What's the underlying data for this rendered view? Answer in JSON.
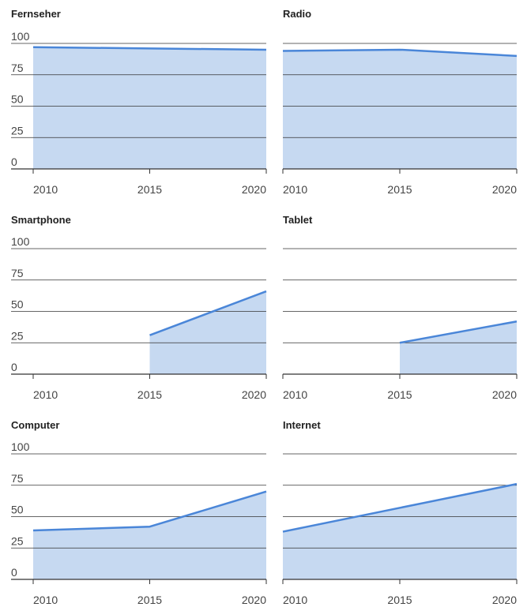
{
  "colors": {
    "line": "#4a86d8",
    "area": "#c6d9f1",
    "grid": "#333333",
    "text": "#444444"
  },
  "chart_data": [
    {
      "type": "area",
      "title": "Fernseher",
      "x": [
        2010,
        2015,
        2020
      ],
      "values": [
        97,
        96,
        95
      ],
      "ylim": [
        0,
        100
      ],
      "yticks": [
        "100",
        "75",
        "50",
        "25",
        "0"
      ],
      "xticks": [
        "2010",
        "2015",
        "2020"
      ],
      "show_yticks": true
    },
    {
      "type": "area",
      "title": "Radio",
      "x": [
        2010,
        2015,
        2020
      ],
      "values": [
        94,
        95,
        90
      ],
      "ylim": [
        0,
        100
      ],
      "yticks": [],
      "xticks": [
        "2010",
        "2015",
        "2020"
      ],
      "show_yticks": false
    },
    {
      "type": "area",
      "title": "Smartphone",
      "x": [
        2015,
        2020
      ],
      "values": [
        31,
        66
      ],
      "ylim": [
        0,
        100
      ],
      "yticks": [
        "100",
        "75",
        "50",
        "25",
        "0"
      ],
      "xticks": [
        "2010",
        "2015",
        "2020"
      ],
      "show_yticks": true
    },
    {
      "type": "area",
      "title": "Tablet",
      "x": [
        2015,
        2020
      ],
      "values": [
        25,
        42
      ],
      "ylim": [
        0,
        100
      ],
      "yticks": [],
      "xticks": [
        "2010",
        "2015",
        "2020"
      ],
      "show_yticks": false
    },
    {
      "type": "area",
      "title": "Computer",
      "x": [
        2010,
        2015,
        2020
      ],
      "values": [
        39,
        42,
        70
      ],
      "ylim": [
        0,
        100
      ],
      "yticks": [
        "100",
        "75",
        "50",
        "25",
        "0"
      ],
      "xticks": [
        "2010",
        "2015",
        "2020"
      ],
      "show_yticks": true
    },
    {
      "type": "area",
      "title": "Internet",
      "x": [
        2010,
        2020
      ],
      "values": [
        38,
        76
      ],
      "ylim": [
        0,
        100
      ],
      "yticks": [],
      "xticks": [
        "2010",
        "2015",
        "2020"
      ],
      "show_yticks": false
    }
  ]
}
